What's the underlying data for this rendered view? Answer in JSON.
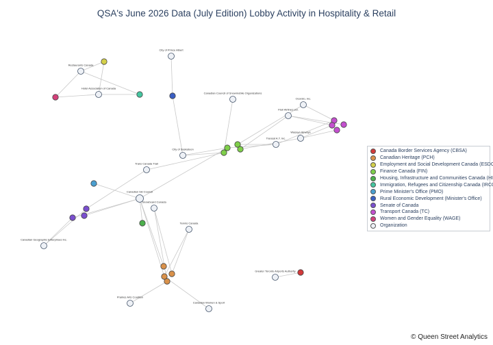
{
  "title": "QSA's June 2026 Data (July Edition) Lobby Activity in Hospitality & Retail",
  "footer": "© Queen Street Analytics",
  "colors": {
    "CBSA": "#d2393a",
    "PCH": "#d9914a",
    "ESDC": "#d4d04a",
    "FIN": "#7fcf4a",
    "HICC": "#4cb04c",
    "IRCC": "#45c6a0",
    "PMO": "#4a9fd0",
    "RED": "#3a5fc4",
    "SEN": "#7a4fcf",
    "TC": "#c44fcf",
    "WAGE": "#d4407a",
    "ORG": "#eef1f6",
    "edge": "#c8c8c8"
  },
  "legend": [
    {
      "key": "CBSA",
      "label": "Canada Border Services Agency (CBSA)"
    },
    {
      "key": "PCH",
      "label": "Canadian Heritage (PCH)"
    },
    {
      "key": "ESDC",
      "label": "Employment and Social Development Canada (ESDC)"
    },
    {
      "key": "FIN",
      "label": "Finance Canada (FIN)"
    },
    {
      "key": "HICC",
      "label": "Housing, Infrastructure and Communities Canada (HICC)"
    },
    {
      "key": "IRCC",
      "label": "Immigration, Refugees and Citizenship Canada (IRCC)"
    },
    {
      "key": "PMO",
      "label": "Prime Minister's Office (PMO)"
    },
    {
      "key": "RED",
      "label": "Rural Economic Development (Minister's Office)"
    },
    {
      "key": "SEN",
      "label": "Senate of Canada"
    },
    {
      "key": "TC",
      "label": "Transport Canada (TC)"
    },
    {
      "key": "WAGE",
      "label": "Women and Gender Equality (WAGE)"
    },
    {
      "key": "ORG",
      "label": "Organization"
    }
  ],
  "organizations": [
    "Restaurants Canada",
    "Hotel Association of Canada",
    "City of Prince Albert",
    "Canadian Council of Snowmobile Organizations",
    "Ocorsto, Inc.",
    "Flair Airlines Ltd.",
    "Wasaya Airways",
    "Transat A.T. Inc.",
    "City of Saskatoon",
    "Trans Canada Trail",
    "Canadian Ski Council",
    "Snowboard Canada",
    "Canadian Geographic Enterprises Inc.",
    "Tennis Canada",
    "Greater Toronto Airports Authority",
    "Prairies Arts Coalition",
    "Canadian Women & Sport"
  ]
}
